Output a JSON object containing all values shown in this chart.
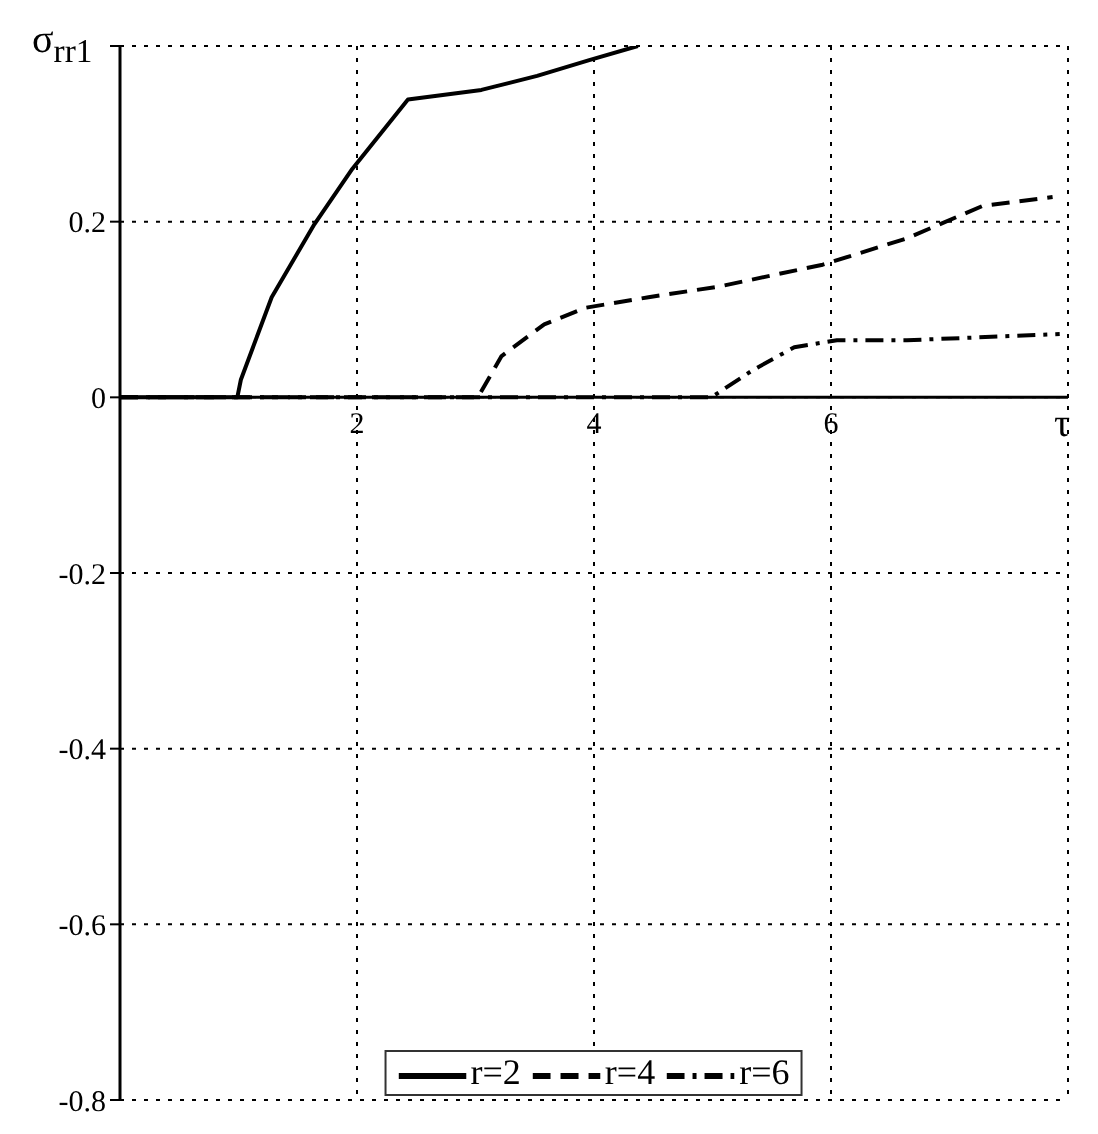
{
  "chart_data": {
    "type": "line",
    "xlabel": "τ",
    "ylabel": "σ$_{rr1}$",
    "xlim": [
      0,
      8
    ],
    "ylim": [
      -0.8,
      0.4
    ],
    "xticks": [
      {
        "value": 0,
        "label": null
      },
      2,
      4,
      6,
      {
        "value": 8,
        "label": null
      }
    ],
    "yticks": [
      -0.8,
      -0.6,
      -0.4,
      -0.2,
      0,
      0.2,
      {
        "value": 0.4,
        "label": null
      }
    ],
    "grid": true,
    "legend": "bottom",
    "marker": "none",
    "series": [
      {
        "name": "r=2",
        "color": "#000000",
        "line_style": "solid",
        "x": [
          0,
          0.99,
          1.02,
          1.28,
          1.64,
          1.96,
          2.43,
          3.05,
          3.52,
          3.96,
          4.37
        ],
        "values": [
          0,
          0,
          0.02,
          0.114,
          0.197,
          0.26,
          0.339,
          0.35,
          0.366,
          0.384,
          0.4
        ]
      },
      {
        "name": "r=4",
        "color": "#000000",
        "line_style": "dashed",
        "x": [
          0,
          3.02,
          3.22,
          3.58,
          3.93,
          4.46,
          5.05,
          5.93,
          6.64,
          7.28,
          7.87
        ],
        "values": [
          0,
          0,
          0.047,
          0.083,
          0.102,
          0.114,
          0.126,
          0.151,
          0.181,
          0.218,
          0.228
        ]
      },
      {
        "name": "r=6",
        "color": "#000000",
        "line_style": "dashdot",
        "x": [
          0,
          4.99,
          5.34,
          5.69,
          6.05,
          6.64,
          7.93
        ],
        "values": [
          0,
          0,
          0.031,
          0.057,
          0.065,
          0.065,
          0.072
        ]
      }
    ]
  }
}
